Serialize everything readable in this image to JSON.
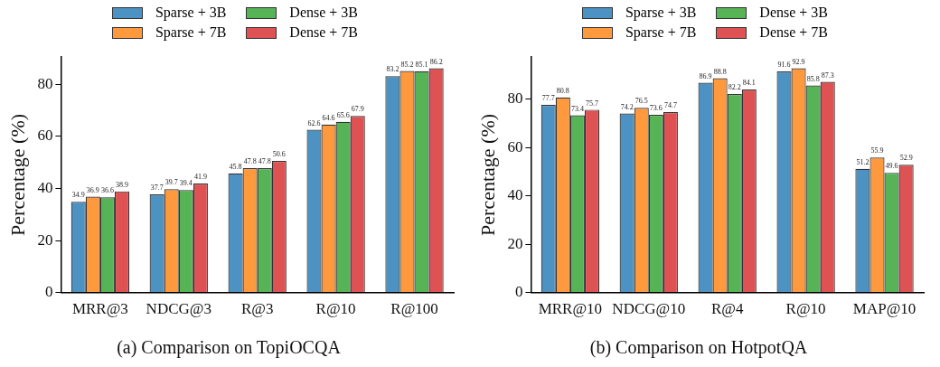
{
  "chart_data": [
    {
      "type": "bar",
      "title": "(a) Comparison on TopiOCQA",
      "ylabel": "Percentage (%)",
      "categories": [
        "MRR@3",
        "NDCG@3",
        "R@3",
        "R@10",
        "R@100"
      ],
      "series": [
        {
          "name": "Sparse + 3B",
          "color": "#4c92c3",
          "values": [
            34.9,
            37.7,
            45.8,
            62.6,
            83.2
          ]
        },
        {
          "name": "Sparse + 7B",
          "color": "#ff993e",
          "values": [
            36.9,
            39.7,
            47.8,
            64.6,
            85.2
          ]
        },
        {
          "name": "Dense + 3B",
          "color": "#56b356",
          "values": [
            36.6,
            39.4,
            47.8,
            65.6,
            85.1
          ]
        },
        {
          "name": "Dense + 7B",
          "color": "#de5253",
          "values": [
            38.9,
            41.9,
            50.6,
            67.9,
            86.2
          ]
        }
      ],
      "ylim": [
        0,
        90.5
      ],
      "yticks": [
        0,
        20,
        40,
        60,
        80
      ],
      "grid": false,
      "legend": "top",
      "data_labels": true
    },
    {
      "type": "bar",
      "title": "(b) Comparison on HotpotQA",
      "ylabel": "Percentage (%)",
      "categories": [
        "MRR@10",
        "NDCG@10",
        "R@4",
        "R@10",
        "MAP@10"
      ],
      "series": [
        {
          "name": "Sparse + 3B",
          "color": "#4c92c3",
          "values": [
            77.7,
            74.2,
            86.9,
            91.6,
            51.2
          ]
        },
        {
          "name": "Sparse + 7B",
          "color": "#ff993e",
          "values": [
            80.8,
            76.5,
            88.8,
            92.9,
            55.9
          ]
        },
        {
          "name": "Dense + 3B",
          "color": "#56b356",
          "values": [
            73.4,
            73.6,
            82.2,
            85.8,
            49.6
          ]
        },
        {
          "name": "Dense + 7B",
          "color": "#de5253",
          "values": [
            75.7,
            74.7,
            84.1,
            87.3,
            52.9
          ]
        }
      ],
      "ylim": [
        0,
        97.5
      ],
      "yticks": [
        0,
        20,
        40,
        60,
        80
      ],
      "grid": false,
      "legend": "top",
      "data_labels": true
    }
  ]
}
